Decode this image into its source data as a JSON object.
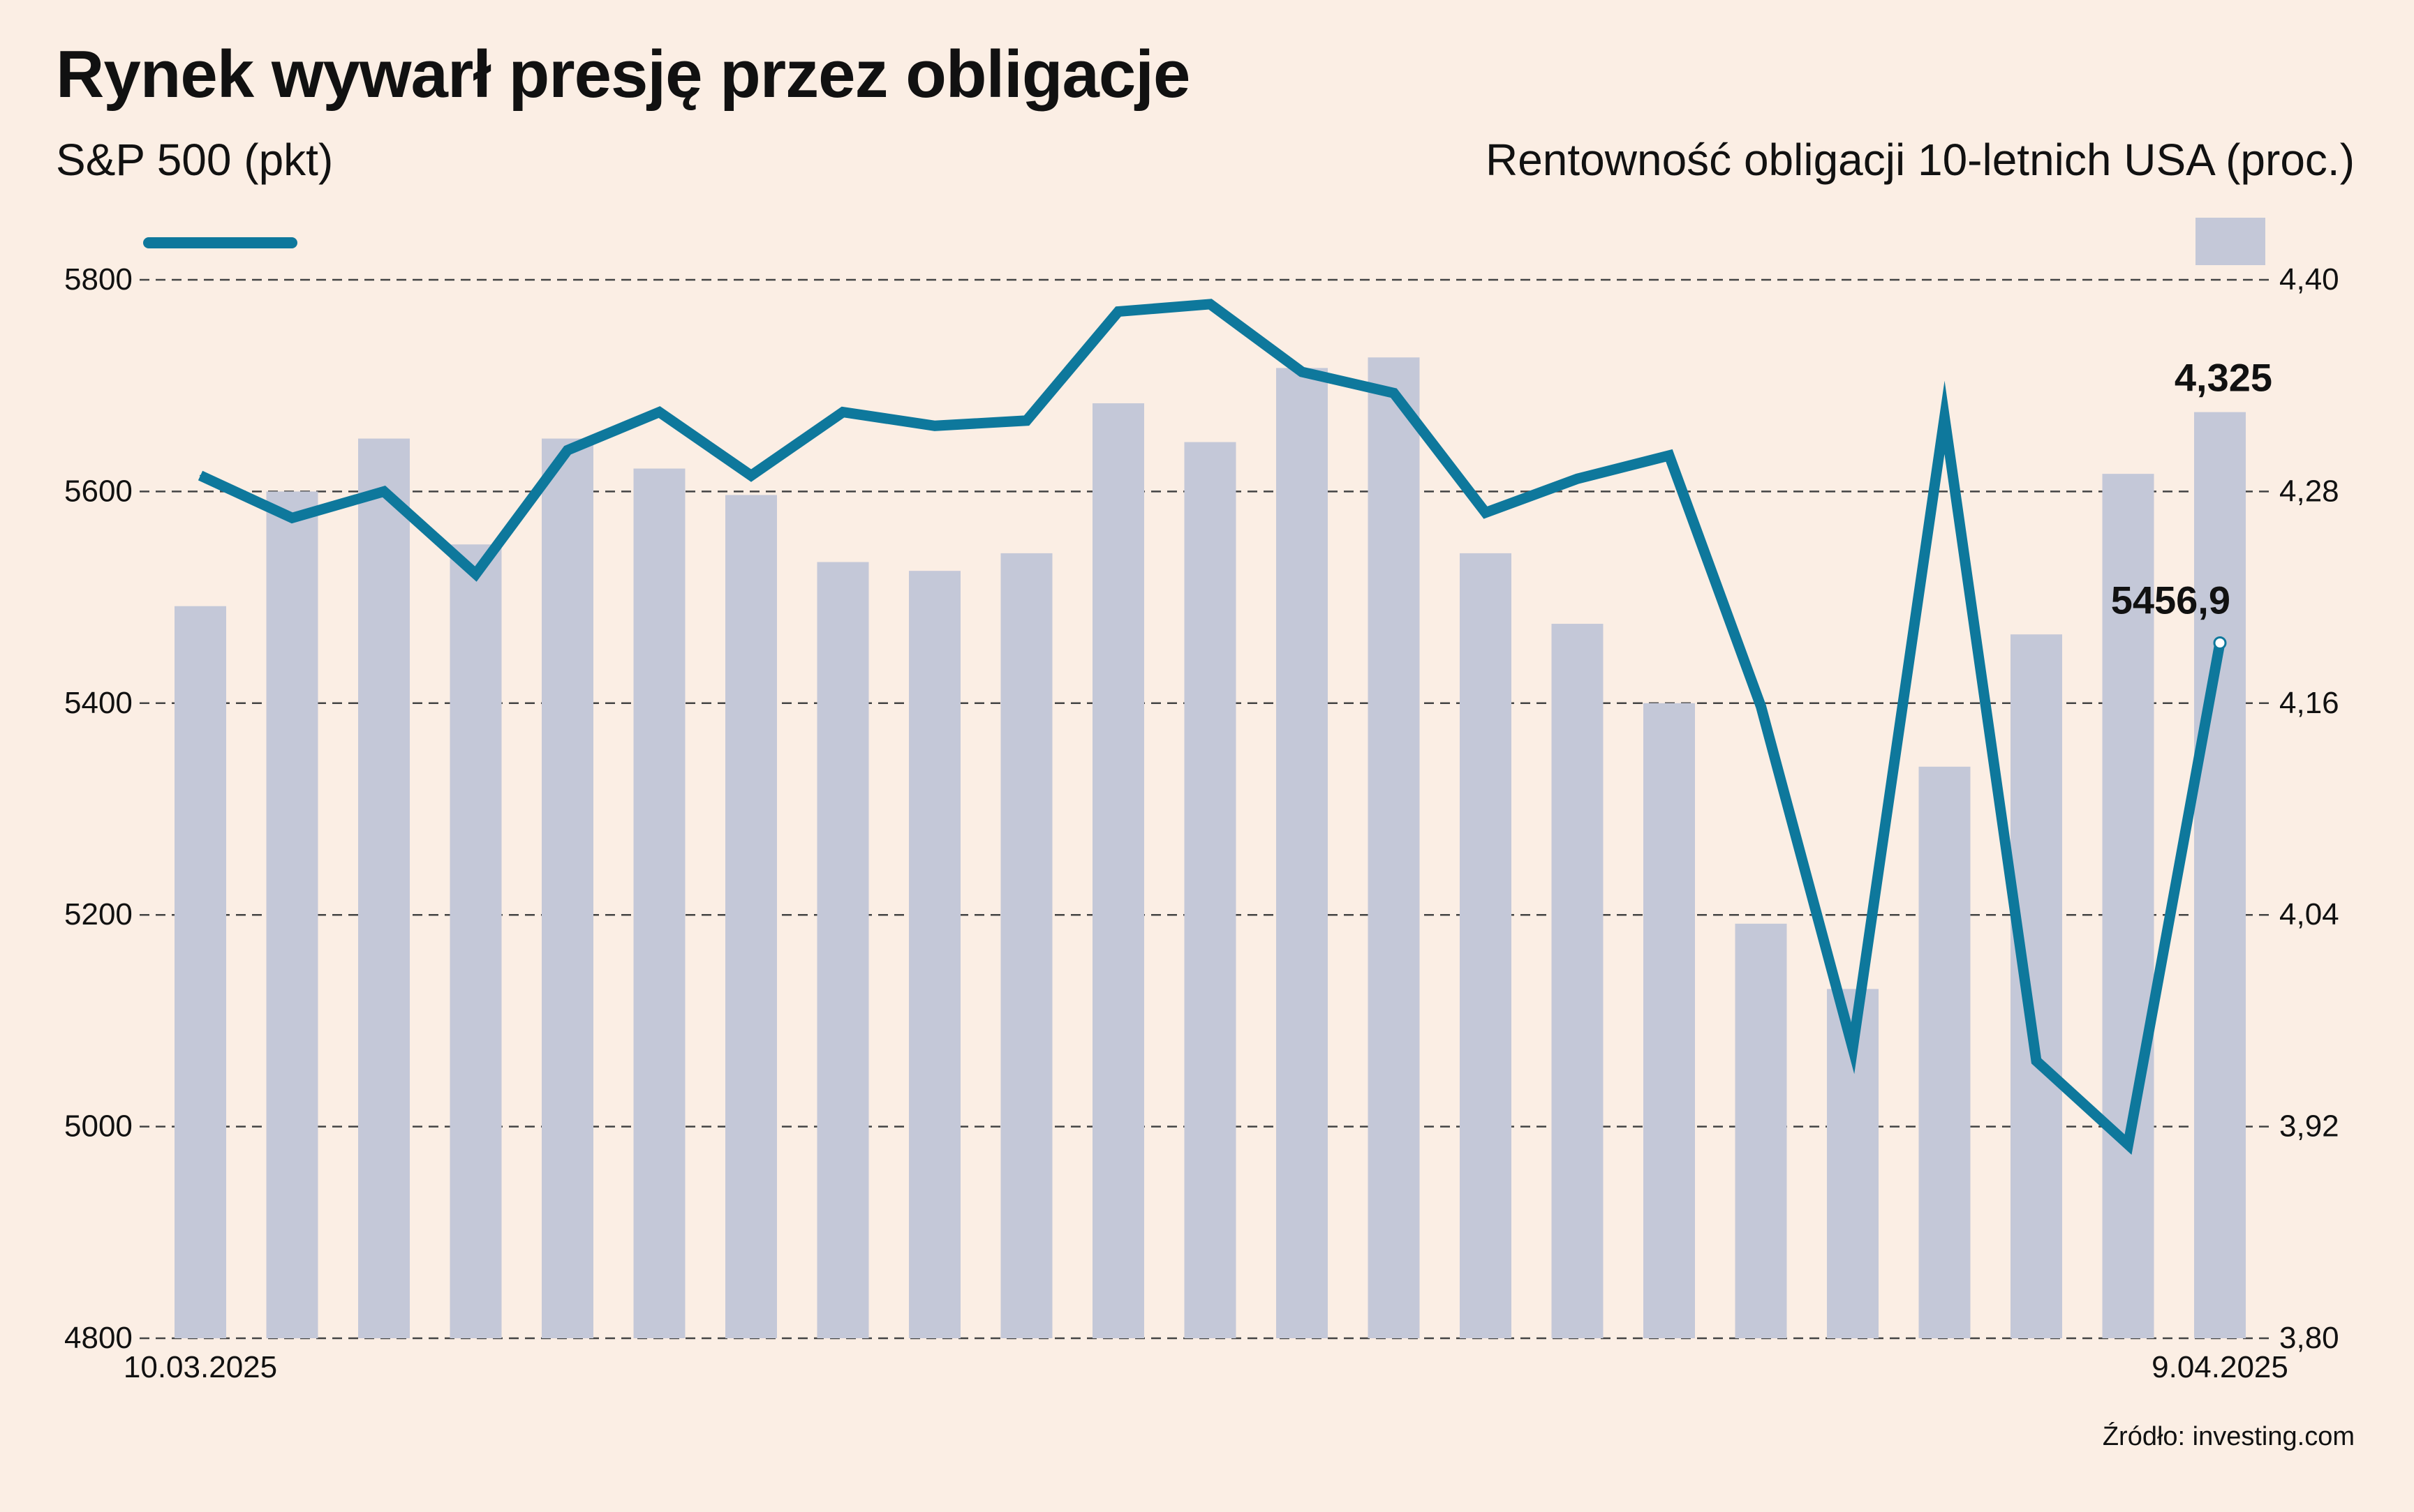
{
  "header": {
    "title": "Rynek wywarł presję przez obligacje",
    "left_axis_title": "S&P 500 (pkt)",
    "right_axis_title": "Rentowność obligacji 10-letnich USA (proc.)"
  },
  "footer": {
    "source": "Źródło: investing.com"
  },
  "colors": {
    "background": "#fbeee4",
    "line": "#0e789c",
    "bars": "#c4c8d8",
    "grid": "#444444"
  },
  "chart_data": {
    "type": "bar+line",
    "x_start_label": "10.03.2025",
    "x_end_label": "9.04.2025",
    "grid": "horizontal dashed",
    "legend": "line swatch top-left, bar swatch top-right",
    "left_axis": {
      "ylim": [
        4800,
        5800
      ],
      "ticks": [
        "4800",
        "5000",
        "5200",
        "5400",
        "5600",
        "5800"
      ]
    },
    "right_axis": {
      "ylim": [
        3.8,
        4.4
      ],
      "ticks": [
        "3,80",
        "3,92",
        "4,04",
        "4,16",
        "4,28",
        "4,40"
      ]
    },
    "series": [
      {
        "axis": "left",
        "kind": "line",
        "values": [
          5615,
          5575,
          5600,
          5522,
          5639,
          5675,
          5615,
          5675,
          5662,
          5667,
          5770,
          5777,
          5713,
          5693,
          5580,
          5612,
          5634,
          5397,
          5074,
          5670,
          5062,
          4983,
          5456.9
        ],
        "last_label": "5456,9"
      },
      {
        "axis": "right",
        "kind": "bar",
        "values": [
          4.215,
          4.28,
          4.31,
          4.25,
          4.31,
          4.293,
          4.278,
          4.24,
          4.235,
          4.245,
          4.33,
          4.308,
          4.35,
          4.356,
          4.245,
          4.205,
          4.16,
          4.035,
          3.998,
          4.124,
          4.199,
          4.29,
          4.325
        ],
        "last_label": "4,325"
      }
    ]
  }
}
